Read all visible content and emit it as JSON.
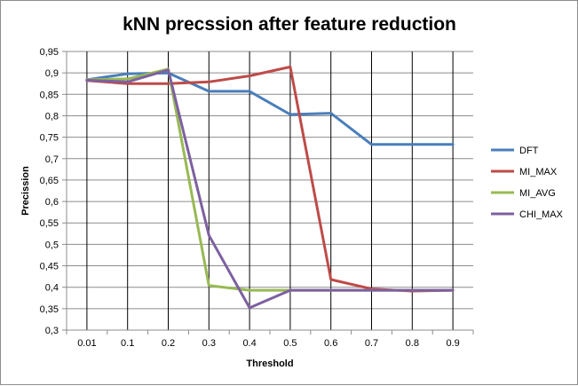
{
  "chart_data": {
    "type": "line",
    "title": "kNN precssion after feature reduction",
    "xlabel": "Threshold",
    "ylabel": "Precission",
    "categories": [
      "0.01",
      "0.1",
      "0.2",
      "0.3",
      "0.4",
      "0.5",
      "0.6",
      "0.7",
      "0.8",
      "0.9"
    ],
    "ylim": [
      0.3,
      0.95
    ],
    "yticks": [
      "0,3",
      "0,35",
      "0,4",
      "0,45",
      "0,5",
      "0,55",
      "0,6",
      "0,65",
      "0,7",
      "0,75",
      "0,8",
      "0,85",
      "0,9",
      "0,95"
    ],
    "grid": "horizontal and vertical",
    "legend_position": "right",
    "series": [
      {
        "name": "DFT",
        "color": "#4a7ebb",
        "values": [
          0.884,
          0.898,
          0.9,
          0.857,
          0.857,
          0.803,
          0.806,
          0.733,
          0.733,
          0.733
        ]
      },
      {
        "name": "MI_MAX",
        "color": "#be4b48",
        "values": [
          0.882,
          0.875,
          0.875,
          0.879,
          0.893,
          0.914,
          0.418,
          0.396,
          0.391,
          0.393
        ]
      },
      {
        "name": "MI_AVG",
        "color": "#98b954",
        "values": [
          0.884,
          0.886,
          0.909,
          0.404,
          0.393,
          0.393,
          0.393,
          0.393,
          0.393,
          0.393
        ]
      },
      {
        "name": "CHI_MAX",
        "color": "#7d60a0",
        "values": [
          0.883,
          0.879,
          0.907,
          0.521,
          0.352,
          0.393,
          0.393,
          0.393,
          0.393,
          0.393
        ]
      }
    ]
  }
}
